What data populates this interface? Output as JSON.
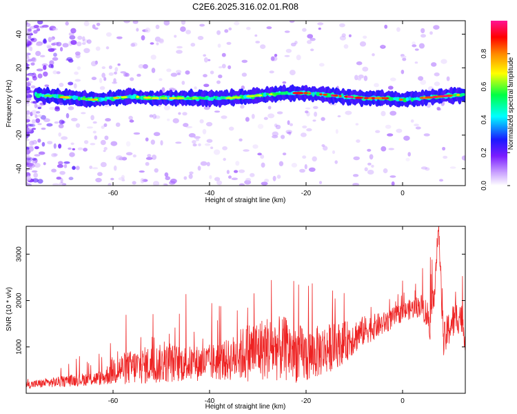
{
  "figure": {
    "title": "C2E6.2025.316.02.01.R08"
  },
  "chart_data": [
    {
      "type": "heatmap",
      "title": "C2E6.2025.316.02.01.R08",
      "xlabel": "Height of straight line (km)",
      "ylabel": "Frequency (Hz)",
      "xlim": [
        -78,
        13
      ],
      "ylim": [
        -50,
        48
      ],
      "x_ticks": [
        -60,
        -40,
        -20,
        0
      ],
      "y_ticks": [
        -40,
        -20,
        0,
        20,
        40
      ],
      "colorbar": {
        "label": "Normalized spectral amplitude",
        "range": [
          0,
          1
        ],
        "ticks": [
          "0.0",
          "0.2",
          "0.4",
          "0.6",
          "0.8"
        ],
        "colormap": [
          "#ffffff",
          "#c9a0ff",
          "#7a1cff",
          "#1a1aff",
          "#00ffff",
          "#00ff44",
          "#ffff00",
          "#ff8800",
          "#ff0000",
          "#ff1493"
        ]
      },
      "ridge": {
        "x": [
          -76,
          -72,
          -68,
          -64,
          -60,
          -56,
          -52,
          -48,
          -44,
          -40,
          -36,
          -32,
          -28,
          -24,
          -20,
          -16,
          -12,
          -8,
          -4,
          0,
          4,
          8,
          12
        ],
        "y": [
          4,
          3,
          2,
          1,
          2,
          3,
          2,
          2,
          2,
          2,
          2,
          3,
          4,
          5,
          5,
          4,
          3,
          2,
          2,
          1,
          2,
          3,
          4
        ]
      }
    },
    {
      "type": "line",
      "xlabel": "Height of straight line (km)",
      "ylabel": "SNR (10 * v/v)",
      "xlim": [
        -78,
        13
      ],
      "ylim": [
        0,
        3600
      ],
      "x_ticks": [
        -60,
        -40,
        -20,
        0
      ],
      "y_ticks": [
        1000,
        2000,
        3000
      ],
      "color": "#ee2222",
      "series": [
        {
          "x": [
            -78,
            -74,
            -70,
            -66,
            -62,
            -60,
            -56,
            -52,
            -48,
            -44,
            -40,
            -36,
            -32,
            -28,
            -24,
            -20,
            -16,
            -12,
            -8,
            -4,
            0,
            4,
            6,
            7.5,
            8.5,
            10,
            12,
            13
          ],
          "values": [
            180,
            220,
            260,
            300,
            330,
            500,
            560,
            620,
            650,
            640,
            660,
            720,
            900,
            980,
            950,
            800,
            950,
            1100,
            1350,
            1500,
            1750,
            1900,
            1500,
            3500,
            1100,
            1500,
            1700,
            1200
          ],
          "noise": [
            80,
            100,
            120,
            140,
            160,
            320,
            380,
            420,
            420,
            380,
            400,
            450,
            650,
            700,
            700,
            600,
            550,
            450,
            320,
            250,
            200,
            250,
            450,
            200,
            400,
            400,
            380,
            300
          ]
        }
      ]
    }
  ]
}
